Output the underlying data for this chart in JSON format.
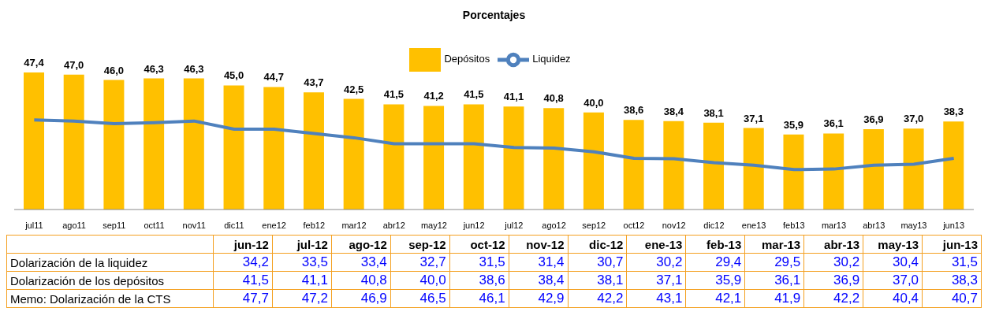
{
  "chart_data": [
    {
      "type": "bar",
      "title": "Porcentajes",
      "categories": [
        "jul11",
        "ago11",
        "sep11",
        "oct11",
        "nov11",
        "dic11",
        "ene12",
        "feb12",
        "mar12",
        "abr12",
        "may12",
        "jun12",
        "jul12",
        "ago12",
        "sep12",
        "oct12",
        "nov12",
        "dic12",
        "ene13",
        "feb13",
        "mar13",
        "abr13",
        "may13",
        "jun13"
      ],
      "series": [
        {
          "name": "Depósitos",
          "type": "bar",
          "color": "#ffc000",
          "values": [
            47.4,
            47.0,
            46.0,
            46.3,
            46.3,
            45.0,
            44.7,
            43.7,
            42.5,
            41.5,
            41.2,
            41.5,
            41.1,
            40.8,
            40.0,
            38.6,
            38.4,
            38.1,
            37.1,
            35.9,
            36.1,
            36.9,
            37.0,
            38.3
          ],
          "value_labels": [
            "47,4",
            "47,0",
            "46,0",
            "46,3",
            "46,3",
            "45,0",
            "44,7",
            "43,7",
            "42,5",
            "41,5",
            "41,2",
            "41,5",
            "41,1",
            "40,8",
            "40,0",
            "38,6",
            "38,4",
            "38,1",
            "37,1",
            "35,9",
            "36,1",
            "36,9",
            "37,0",
            "38,3"
          ]
        },
        {
          "name": "Liquidez",
          "type": "line",
          "color": "#4f81bd",
          "values": [
            38.6,
            38.4,
            37.9,
            38.1,
            38.4,
            36.9,
            36.9,
            36.1,
            35.3,
            34.2,
            34.2,
            34.2,
            33.5,
            33.4,
            32.7,
            31.5,
            31.4,
            30.7,
            30.2,
            29.4,
            29.5,
            30.2,
            30.4,
            31.5
          ]
        }
      ],
      "ylim": [
        22,
        47.4
      ],
      "legend": "top",
      "grid": false,
      "marker": "none",
      "tick_labels": "x"
    },
    {
      "type": "other",
      "categories": [
        "jun-12",
        "jul-12",
        "ago-12",
        "sep-12",
        "oct-12",
        "nov-12",
        "dic-12",
        "ene-13",
        "feb-13",
        "mar-13",
        "abr-13",
        "may-13",
        "jun-13"
      ],
      "series": [
        {
          "name": "Dolarización de la liquidez",
          "values": [
            34.2,
            33.5,
            33.4,
            32.7,
            31.5,
            31.4,
            30.7,
            30.2,
            29.4,
            29.5,
            30.2,
            30.4,
            31.5
          ],
          "value_labels": [
            "34,2",
            "33,5",
            "33,4",
            "32,7",
            "31,5",
            "31,4",
            "30,7",
            "30,2",
            "29,4",
            "29,5",
            "30,2",
            "30,4",
            "31,5"
          ]
        },
        {
          "name": "Dolarización de los depósitos",
          "values": [
            41.5,
            41.1,
            40.8,
            40.0,
            38.6,
            38.4,
            38.1,
            37.1,
            35.9,
            36.1,
            36.9,
            37.0,
            38.3
          ],
          "value_labels": [
            "41,5",
            "41,1",
            "40,8",
            "40,0",
            "38,6",
            "38,4",
            "38,1",
            "37,1",
            "35,9",
            "36,1",
            "36,9",
            "37,0",
            "38,3"
          ]
        },
        {
          "name": "Memo: Dolarización de la CTS",
          "values": [
            47.7,
            47.2,
            46.9,
            46.5,
            46.1,
            42.9,
            42.2,
            43.1,
            42.1,
            41.9,
            42.2,
            40.4,
            40.7
          ],
          "value_labels": [
            "47,7",
            "47,2",
            "46,9",
            "46,5",
            "46,1",
            "42,9",
            "42,2",
            "43,1",
            "42,1",
            "41,9",
            "42,2",
            "40,4",
            "40,7"
          ]
        }
      ]
    }
  ]
}
